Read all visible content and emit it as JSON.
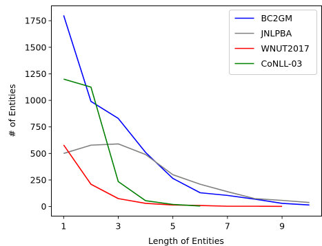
{
  "chart_data": {
    "type": "line",
    "title": "",
    "xlabel": "Length of Entities",
    "ylabel": "# of Entities",
    "xlim": [
      0.55,
      10.45
    ],
    "ylim": [
      -90,
      1890
    ],
    "xticks": [
      1,
      3,
      5,
      7,
      9
    ],
    "yticks": [
      0,
      250,
      500,
      750,
      1000,
      1250,
      1500,
      1750
    ],
    "grid": false,
    "legend_position": "top-right",
    "series": [
      {
        "name": "BC2GM",
        "color": "#0000ff",
        "x": [
          1,
          2,
          3,
          4,
          5,
          6,
          7,
          8,
          9,
          10
        ],
        "y": [
          1800,
          990,
          830,
          510,
          265,
          130,
          105,
          70,
          30,
          15
        ]
      },
      {
        "name": "JNLPBA",
        "color": "#808080",
        "x": [
          1,
          2,
          3,
          4,
          5,
          6,
          7,
          8,
          9,
          10
        ],
        "y": [
          500,
          578,
          590,
          490,
          300,
          210,
          140,
          75,
          58,
          38
        ]
      },
      {
        "name": "WNUT2017",
        "color": "#ff0000",
        "x": [
          1,
          2,
          3,
          4,
          5,
          6,
          7,
          8,
          9
        ],
        "y": [
          580,
          210,
          75,
          30,
          15,
          10,
          3,
          3,
          2
        ]
      },
      {
        "name": "CoNLL-03",
        "color": "#008000",
        "x": [
          1,
          2,
          3,
          4,
          5,
          6
        ],
        "y": [
          1200,
          1125,
          235,
          55,
          20,
          5
        ]
      }
    ]
  }
}
